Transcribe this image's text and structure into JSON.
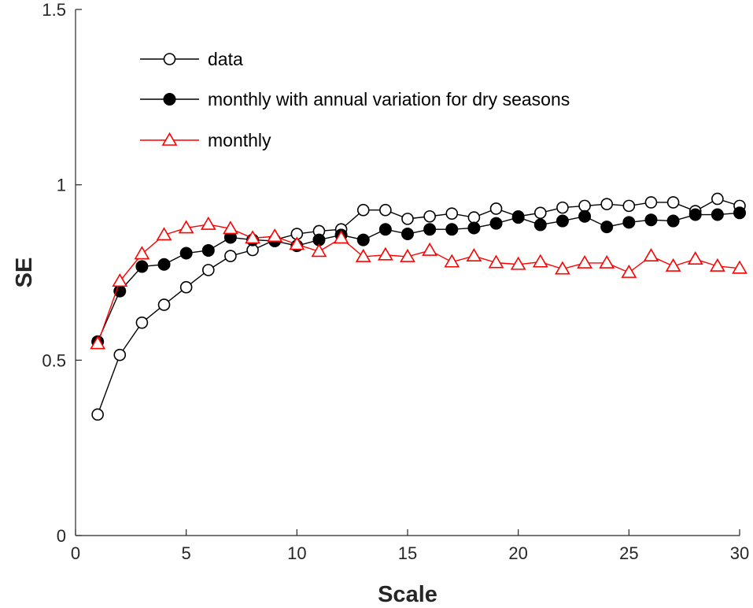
{
  "chart_data": {
    "type": "line",
    "title": "",
    "xlabel": "Scale",
    "ylabel": "SE",
    "xlim": [
      0,
      30
    ],
    "ylim": [
      0,
      1.5
    ],
    "xticks": [
      0,
      5,
      10,
      15,
      20,
      25,
      30
    ],
    "yticks": [
      0,
      0.5,
      1,
      1.5
    ],
    "xtick_labels": [
      "0",
      "5",
      "10",
      "15",
      "20",
      "25",
      "30"
    ],
    "ytick_labels": [
      "0",
      "0.5",
      "1",
      "1.5"
    ],
    "grid": false,
    "legend_position": "top",
    "x": [
      1,
      2,
      3,
      4,
      5,
      6,
      7,
      8,
      9,
      10,
      11,
      12,
      13,
      14,
      15,
      16,
      17,
      18,
      19,
      20,
      21,
      22,
      23,
      24,
      25,
      26,
      27,
      28,
      29,
      30
    ],
    "series": [
      {
        "name": "data",
        "marker": "open-circle",
        "color": "#000000",
        "values": [
          0.345,
          0.515,
          0.607,
          0.658,
          0.708,
          0.757,
          0.797,
          0.814,
          0.843,
          0.86,
          0.868,
          0.873,
          0.928,
          0.928,
          0.903,
          0.91,
          0.918,
          0.907,
          0.932,
          0.91,
          0.92,
          0.935,
          0.94,
          0.945,
          0.94,
          0.95,
          0.95,
          0.925,
          0.96,
          0.94
        ]
      },
      {
        "name": "monthly with annual variation for dry seasons",
        "marker": "filled-circle",
        "color": "#000000",
        "values": [
          0.553,
          0.697,
          0.767,
          0.773,
          0.805,
          0.813,
          0.85,
          0.843,
          0.84,
          0.826,
          0.843,
          0.857,
          0.843,
          0.873,
          0.86,
          0.873,
          0.873,
          0.877,
          0.89,
          0.907,
          0.886,
          0.897,
          0.91,
          0.88,
          0.893,
          0.9,
          0.897,
          0.915,
          0.915,
          0.92
        ]
      },
      {
        "name": "monthly",
        "marker": "open-triangle",
        "color": "#ff0000",
        "values": [
          0.547,
          0.725,
          0.803,
          0.857,
          0.877,
          0.887,
          0.875,
          0.848,
          0.853,
          0.83,
          0.81,
          0.848,
          0.795,
          0.8,
          0.795,
          0.813,
          0.78,
          0.797,
          0.778,
          0.773,
          0.78,
          0.76,
          0.777,
          0.777,
          0.75,
          0.797,
          0.768,
          0.788,
          0.768,
          0.762
        ]
      }
    ]
  }
}
